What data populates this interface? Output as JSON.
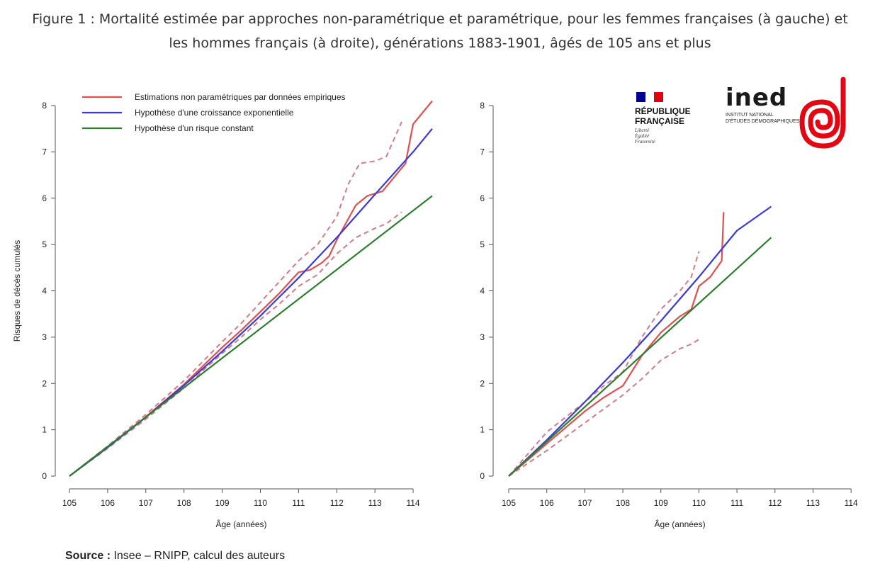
{
  "title": {
    "line1": "Figure 1 : Mortalité estimée par approches non-paramétrique et paramétrique, pour les femmes françaises (à gauche) et",
    "line2": "les hommes français (à droite), générations 1883-1901, âgés de 105 ans et plus"
  },
  "source": {
    "label": "Source :",
    "text": " Insee – RNIPP, calcul des auteurs"
  },
  "logos": {
    "rf_name_1": "RÉPUBLIQUE",
    "rf_name_2": "FRANÇAISE",
    "rf_motto_1": "Liberté",
    "rf_motto_2": "Égalité",
    "rf_motto_3": "Fraternité",
    "ined_word": "ined",
    "ined_sub_1": "INSTITUT NATIONAL",
    "ined_sub_2": "D'ÉTUDES DÉMOGRAPHIQUES",
    "colors": {
      "flag_blue": "#000091",
      "flag_white": "#ffffff",
      "flag_red": "#e1000f",
      "ined_red": "#e30613"
    }
  },
  "colors": {
    "red": "#e05050",
    "red_dashed": "#d07a8a",
    "blue": "#3a3ad8",
    "green": "#2e7d2e",
    "axis": "#555555"
  },
  "chart_data": [
    {
      "type": "line",
      "panel": "left",
      "xlabel": "Âge (années)",
      "ylabel": "Risques de décès cumulés",
      "xlim": [
        105,
        114.5
      ],
      "ylim": [
        0,
        8
      ],
      "xticks": [
        105,
        106,
        107,
        108,
        109,
        110,
        111,
        112,
        113,
        114
      ],
      "yticks": [
        0,
        1,
        2,
        3,
        4,
        5,
        6,
        7,
        8
      ],
      "legend": {
        "position": "top-left",
        "entries": [
          {
            "label": "Estimations non paramétriques par données empiriques",
            "color": "#e05050"
          },
          {
            "label": "Hypothèse d'une croissance exponentielle",
            "color": "#3a3ad8"
          },
          {
            "label": "Hypothèse d'un risque constant",
            "color": "#2e7d2e"
          }
        ]
      },
      "series": [
        {
          "name": "Estimations non paramétriques par données empiriques",
          "color": "#e05050",
          "style": "solid",
          "x": [
            105,
            106,
            107,
            108,
            108.5,
            109,
            109.5,
            110,
            110.5,
            111,
            111.3,
            111.6,
            111.8,
            112,
            112.2,
            112.5,
            112.8,
            113.2,
            113.5,
            113.8,
            114,
            114.5
          ],
          "y": [
            0,
            0.62,
            1.28,
            1.98,
            2.38,
            2.78,
            3.15,
            3.55,
            3.95,
            4.4,
            4.45,
            4.6,
            4.75,
            5.1,
            5.4,
            5.85,
            6.05,
            6.15,
            6.45,
            6.75,
            7.6,
            8.1
          ]
        },
        {
          "name": "",
          "color": "#d07a8a",
          "style": "dashed",
          "x": [
            105,
            106,
            107,
            108,
            108.5,
            109,
            109.5,
            110,
            110.5,
            111,
            111.5,
            112,
            112.3,
            112.6,
            113,
            113.3,
            113.7
          ],
          "y": [
            0,
            0.65,
            1.33,
            2.06,
            2.48,
            2.9,
            3.3,
            3.75,
            4.2,
            4.65,
            5.0,
            5.6,
            6.3,
            6.75,
            6.8,
            6.9,
            7.65
          ]
        },
        {
          "name": "",
          "color": "#d07a8a",
          "style": "dashed",
          "x": [
            105,
            106,
            107,
            108,
            108.5,
            109,
            109.5,
            110,
            110.5,
            111,
            111.5,
            112,
            112.5,
            113,
            113.3,
            113.7
          ],
          "y": [
            0,
            0.6,
            1.23,
            1.9,
            2.28,
            2.65,
            3.0,
            3.38,
            3.72,
            4.1,
            4.35,
            4.8,
            5.15,
            5.35,
            5.45,
            5.7
          ]
        },
        {
          "name": "Hypothèse d'une croissance exponentielle",
          "color": "#3a3ad8",
          "style": "solid",
          "x": [
            105,
            106,
            107,
            108,
            109,
            110,
            111,
            112,
            113,
            114,
            114.5
          ],
          "y": [
            0,
            0.62,
            1.27,
            1.96,
            2.69,
            3.46,
            4.28,
            5.15,
            6.08,
            7.0,
            7.5
          ]
        },
        {
          "name": "Hypothèse d'un risque constant",
          "color": "#2e7d2e",
          "style": "solid",
          "x": [
            105,
            114.5
          ],
          "y": [
            0,
            6.05
          ]
        }
      ]
    },
    {
      "type": "line",
      "panel": "right",
      "xlabel": "Âge (années)",
      "xlim": [
        105,
        114.5
      ],
      "ylim": [
        0,
        8
      ],
      "xticks": [
        105,
        106,
        107,
        108,
        109,
        110,
        111,
        112,
        113,
        114
      ],
      "yticks": [
        0,
        1,
        2,
        3,
        4,
        5,
        6,
        7,
        8
      ],
      "series": [
        {
          "name": "",
          "color": "#e05050",
          "style": "solid",
          "x": [
            105,
            106,
            107,
            107.5,
            107.8,
            108,
            108.5,
            109,
            109.5,
            109.8,
            110,
            110.3,
            110.6,
            110.65
          ],
          "y": [
            0,
            0.7,
            1.4,
            1.7,
            1.85,
            1.95,
            2.6,
            3.1,
            3.45,
            3.6,
            4.1,
            4.3,
            4.65,
            5.7
          ]
        },
        {
          "name": "",
          "color": "#d07a8a",
          "style": "dashed",
          "x": [
            105,
            106,
            107,
            107.5,
            108,
            108.5,
            109,
            109.5,
            109.8,
            110
          ],
          "y": [
            0,
            0.95,
            1.6,
            1.95,
            2.25,
            3.0,
            3.6,
            4.0,
            4.3,
            4.85
          ]
        },
        {
          "name": "",
          "color": "#d07a8a",
          "style": "dashed",
          "x": [
            105,
            106,
            107,
            107.5,
            108,
            108.5,
            109,
            109.5,
            109.8,
            110
          ],
          "y": [
            0,
            0.55,
            1.15,
            1.45,
            1.75,
            2.1,
            2.5,
            2.75,
            2.85,
            2.95
          ]
        },
        {
          "name": "",
          "color": "#3a3ad8",
          "style": "solid",
          "x": [
            105,
            106,
            107,
            108,
            109,
            110,
            111,
            111.9
          ],
          "y": [
            0,
            0.78,
            1.6,
            2.45,
            3.35,
            4.3,
            5.3,
            5.82
          ]
        },
        {
          "name": "",
          "color": "#2e7d2e",
          "style": "solid",
          "x": [
            105,
            111.9
          ],
          "y": [
            0,
            5.15
          ]
        }
      ]
    }
  ]
}
